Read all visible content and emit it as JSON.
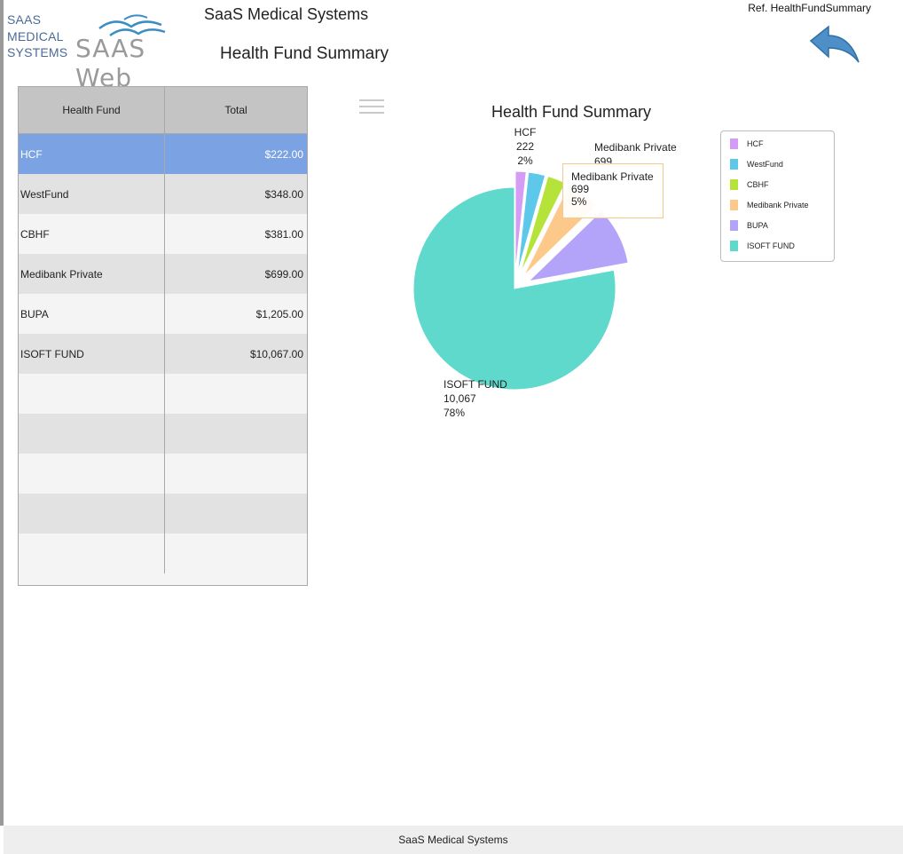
{
  "header": {
    "logo_small_lines": [
      "SAAS",
      "MEDICAL",
      "SYSTEMS"
    ],
    "logo_big": "SAAS Web",
    "app_name": "SaaS Medical Systems",
    "page_title": "Health Fund Summary",
    "ref": "Ref. HealthFundSummary"
  },
  "grid": {
    "columns": [
      "Health Fund",
      "Total"
    ],
    "rows": [
      {
        "fund": "HCF",
        "total": "$222.00"
      },
      {
        "fund": "WestFund",
        "total": "$348.00"
      },
      {
        "fund": "CBHF",
        "total": "$381.00"
      },
      {
        "fund": "Medibank Private",
        "total": "$699.00"
      },
      {
        "fund": "BUPA",
        "total": "$1,205.00"
      },
      {
        "fund": "ISOFT FUND",
        "total": "$10,067.00"
      }
    ],
    "selected_index": 0
  },
  "chart_data": {
    "type": "pie",
    "title": "Health Fund Summary",
    "slices": [
      {
        "name": "HCF",
        "value": 222,
        "color": "#d59cf5"
      },
      {
        "name": "WestFund",
        "value": 348,
        "color": "#5ec8ea"
      },
      {
        "name": "CBHF",
        "value": 381,
        "color": "#b5e33a"
      },
      {
        "name": "Medibank Private",
        "value": 699,
        "color": "#fcc98a"
      },
      {
        "name": "BUPA",
        "value": 1205,
        "color": "#b4a4f9"
      },
      {
        "name": "ISOFT FUND",
        "value": 10067,
        "color": "#5fd9cc"
      }
    ],
    "data_labels": [
      {
        "name": "HCF",
        "value": "222",
        "percent": "2%"
      },
      {
        "name": "Medibank Private",
        "value": "699",
        "percent": ""
      },
      {
        "name": "ISOFT FUND",
        "value": "10,067",
        "percent": "78%"
      }
    ],
    "legend_placement": "top-right"
  },
  "tooltip": {
    "name": "Medibank Private",
    "value": "699",
    "percent": "5%"
  },
  "footer": {
    "text": "SaaS Medical Systems"
  }
}
